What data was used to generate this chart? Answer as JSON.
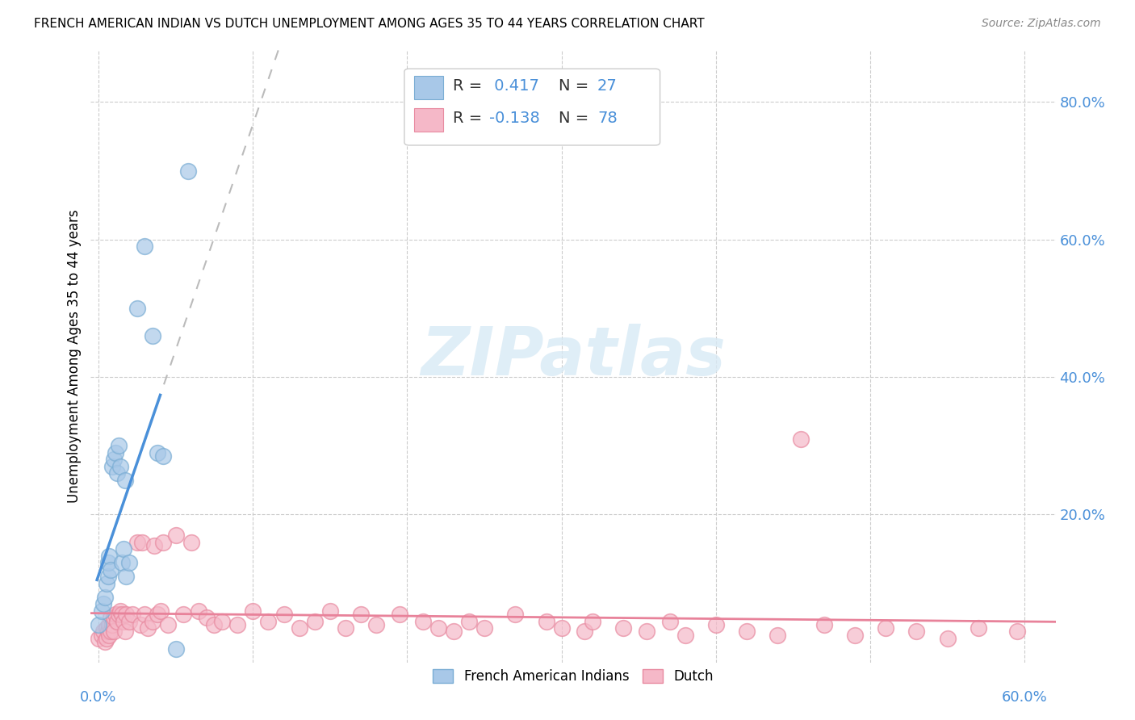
{
  "title": "FRENCH AMERICAN INDIAN VS DUTCH UNEMPLOYMENT AMONG AGES 35 TO 44 YEARS CORRELATION CHART",
  "source": "Source: ZipAtlas.com",
  "ylabel": "Unemployment Among Ages 35 to 44 years",
  "blue_color": "#A8C8E8",
  "blue_edge": "#7AADD4",
  "pink_color": "#F5B8C8",
  "pink_edge": "#E88AA0",
  "blue_line": "#4A90D9",
  "pink_line": "#E8829A",
  "gray_dash": "#BBBBBB",
  "right_tick_color": "#4A90D9",
  "watermark_color": "#D8EAF5",
  "french_x": [
    0.0,
    0.002,
    0.003,
    0.004,
    0.005,
    0.006,
    0.006,
    0.007,
    0.008,
    0.009,
    0.01,
    0.011,
    0.012,
    0.013,
    0.014,
    0.015,
    0.016,
    0.017,
    0.018,
    0.02,
    0.025,
    0.03,
    0.035,
    0.038,
    0.042,
    0.05,
    0.058
  ],
  "french_y": [
    0.04,
    0.06,
    0.07,
    0.08,
    0.1,
    0.11,
    0.13,
    0.14,
    0.12,
    0.27,
    0.28,
    0.29,
    0.26,
    0.3,
    0.27,
    0.13,
    0.15,
    0.25,
    0.11,
    0.13,
    0.5,
    0.59,
    0.46,
    0.29,
    0.285,
    0.005,
    0.7
  ],
  "dutch_x": [
    0.0,
    0.002,
    0.003,
    0.004,
    0.005,
    0.005,
    0.006,
    0.007,
    0.007,
    0.008,
    0.008,
    0.009,
    0.01,
    0.01,
    0.011,
    0.012,
    0.013,
    0.014,
    0.015,
    0.016,
    0.017,
    0.018,
    0.02,
    0.022,
    0.025,
    0.027,
    0.028,
    0.03,
    0.032,
    0.035,
    0.036,
    0.038,
    0.04,
    0.042,
    0.045,
    0.05,
    0.055,
    0.06,
    0.065,
    0.07,
    0.075,
    0.08,
    0.09,
    0.1,
    0.11,
    0.12,
    0.13,
    0.14,
    0.15,
    0.16,
    0.17,
    0.18,
    0.195,
    0.21,
    0.22,
    0.23,
    0.24,
    0.25,
    0.27,
    0.29,
    0.3,
    0.315,
    0.32,
    0.34,
    0.355,
    0.37,
    0.38,
    0.4,
    0.42,
    0.44,
    0.455,
    0.47,
    0.49,
    0.51,
    0.53,
    0.55,
    0.57,
    0.595
  ],
  "dutch_y": [
    0.02,
    0.025,
    0.03,
    0.015,
    0.035,
    0.02,
    0.03,
    0.04,
    0.025,
    0.05,
    0.03,
    0.04,
    0.05,
    0.03,
    0.055,
    0.045,
    0.055,
    0.06,
    0.055,
    0.045,
    0.03,
    0.055,
    0.045,
    0.055,
    0.16,
    0.04,
    0.16,
    0.055,
    0.035,
    0.045,
    0.155,
    0.055,
    0.06,
    0.16,
    0.04,
    0.17,
    0.055,
    0.16,
    0.06,
    0.05,
    0.04,
    0.045,
    0.04,
    0.06,
    0.045,
    0.055,
    0.035,
    0.045,
    0.06,
    0.035,
    0.055,
    0.04,
    0.055,
    0.045,
    0.035,
    0.03,
    0.045,
    0.035,
    0.055,
    0.045,
    0.035,
    0.03,
    0.045,
    0.035,
    0.03,
    0.045,
    0.025,
    0.04,
    0.03,
    0.025,
    0.31,
    0.04,
    0.025,
    0.035,
    0.03,
    0.02,
    0.035,
    0.03
  ],
  "xlim": [
    -0.005,
    0.62
  ],
  "ylim": [
    -0.015,
    0.875
  ],
  "ytick_vals": [
    0.2,
    0.4,
    0.6,
    0.8
  ],
  "ytick_labels": [
    "20.0%",
    "40.0%",
    "60.0%",
    "80.0%"
  ],
  "xtick_vals": [
    0.0,
    0.1,
    0.2,
    0.3,
    0.4,
    0.5,
    0.6
  ],
  "legend1_text": "R =  0.417   N = 27",
  "legend2_text": "R = -0.138   N = 78",
  "legend1_R_val": "0.417",
  "legend1_N_val": "N = 27",
  "legend2_R_val": "-0.138",
  "legend2_N_val": "N = 78",
  "bottom_legend1": "French American Indians",
  "bottom_legend2": "Dutch"
}
